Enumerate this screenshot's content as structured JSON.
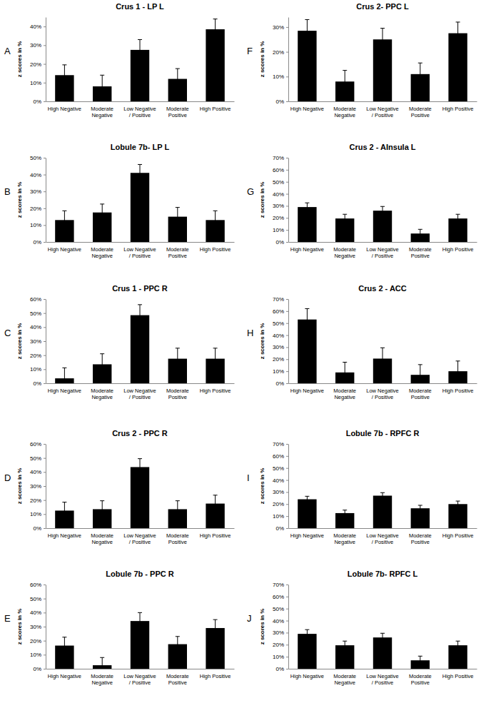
{
  "chart_data": [
    {
      "type": "bar",
      "label": "A",
      "title": "Crus 1 - LP L",
      "y_label": "z scores in %",
      "categories": [
        "High Negative",
        "Moderate Negative",
        "Low Negative / Positive",
        "Moderate Positive",
        "High Positive"
      ],
      "values": [
        14,
        8,
        27.5,
        12,
        38.5
      ],
      "errors": [
        5.5,
        6,
        5.5,
        5.5,
        5.5
      ],
      "color": "#000000",
      "ylim": [
        0,
        45
      ],
      "yticks": [
        {
          "value": 0,
          "label": "0%"
        },
        {
          "value": 10,
          "label": "10%"
        },
        {
          "value": 20,
          "label": "20%"
        },
        {
          "value": 30,
          "label": "30%"
        },
        {
          "value": 40,
          "label": "40%"
        }
      ]
    },
    {
      "type": "bar",
      "label": "B",
      "title": "Lobule 7b- LP L",
      "y_label": "z scores in %",
      "categories": [
        "High Negative",
        "Moderate Negative",
        "Low Negative / Positive",
        "Moderate Positive",
        "High Positive"
      ],
      "values": [
        13,
        17.5,
        41,
        15,
        13
      ],
      "errors": [
        5.5,
        5,
        5,
        5.5,
        5.5
      ],
      "color": "#000000",
      "ylim": [
        0,
        50
      ],
      "yticks": [
        {
          "value": 0,
          "label": "0%"
        },
        {
          "value": 10,
          "label": "10%"
        },
        {
          "value": 20,
          "label": "20%"
        },
        {
          "value": 30,
          "label": "30%"
        },
        {
          "value": 40,
          "label": "40%"
        },
        {
          "value": 50,
          "label": "50%"
        }
      ]
    },
    {
      "type": "bar",
      "label": "C",
      "title": "Crus 1 - PPC R",
      "y_label": "z scores in %",
      "categories": [
        "High Negative",
        "Moderate Negative",
        "Low Negative / Positive",
        "Moderate Positive",
        "High Positive"
      ],
      "values": [
        3.5,
        13.5,
        48.5,
        17.5,
        17.5
      ],
      "errors": [
        7.5,
        7.5,
        7.5,
        7.5,
        7.5
      ],
      "color": "#000000",
      "ylim": [
        0,
        60
      ],
      "yticks": [
        {
          "value": 0,
          "label": "0%"
        },
        {
          "value": 10,
          "label": "10%"
        },
        {
          "value": 20,
          "label": "20%"
        },
        {
          "value": 30,
          "label": "30%"
        },
        {
          "value": 40,
          "label": "40%"
        },
        {
          "value": 50,
          "label": "50%"
        },
        {
          "value": 60,
          "label": "60%"
        }
      ]
    },
    {
      "type": "bar",
      "label": "D",
      "title": "Crus 2 - PPC R",
      "y_label": "z scores in %",
      "categories": [
        "High Negative",
        "Moderate Negative",
        "Low Negative / Positive",
        "Moderate Positive",
        "High Positive"
      ],
      "values": [
        12.5,
        13.5,
        43.5,
        13.5,
        17.5
      ],
      "errors": [
        6,
        6,
        6,
        6,
        6
      ],
      "color": "#000000",
      "ylim": [
        0,
        60
      ],
      "yticks": [
        {
          "value": 0,
          "label": "0%"
        },
        {
          "value": 10,
          "label": "10%"
        },
        {
          "value": 20,
          "label": "20%"
        },
        {
          "value": 30,
          "label": "30%"
        },
        {
          "value": 40,
          "label": "40%"
        },
        {
          "value": 50,
          "label": "50%"
        },
        {
          "value": 60,
          "label": "60%"
        }
      ]
    },
    {
      "type": "bar",
      "label": "E",
      "title": "Lobule 7b - PPC R",
      "y_label": "z scores in %",
      "categories": [
        "High Negative",
        "Moderate Negative",
        "Low Negative / Positive",
        "Moderate Positive",
        "High Positive"
      ],
      "values": [
        16.5,
        2.5,
        34,
        17.5,
        29
      ],
      "errors": [
        6,
        5.5,
        6,
        5.5,
        6
      ],
      "color": "#000000",
      "ylim": [
        0,
        60
      ],
      "yticks": [
        {
          "value": 0,
          "label": "0%"
        },
        {
          "value": 10,
          "label": "10%"
        },
        {
          "value": 20,
          "label": "20%"
        },
        {
          "value": 30,
          "label": "30%"
        },
        {
          "value": 40,
          "label": "40%"
        },
        {
          "value": 50,
          "label": "50%"
        },
        {
          "value": 60,
          "label": "60%"
        }
      ]
    },
    {
      "type": "bar",
      "label": "F",
      "title": "Crus 2- PPC L",
      "y_label": "z scores in %",
      "categories": [
        "High Negative",
        "Moderate Negative",
        "Low Negative / Positive",
        "Moderate Positive",
        "High Positive"
      ],
      "values": [
        28.5,
        8,
        25,
        11,
        27.5
      ],
      "errors": [
        4.5,
        4.5,
        4.5,
        4.5,
        4.5
      ],
      "color": "#000000",
      "ylim": [
        0,
        34
      ],
      "yticks": [
        {
          "value": 0,
          "label": "0%"
        },
        {
          "value": 10,
          "label": "10%"
        },
        {
          "value": 20,
          "label": "20%"
        },
        {
          "value": 30,
          "label": "30%"
        }
      ]
    },
    {
      "type": "bar",
      "label": "G",
      "title": "Crus 2 - AInsula L",
      "y_label": "z scores in %",
      "categories": [
        "High Negative",
        "Moderate Negative",
        "Low Negative / Positive",
        "Moderate Positive",
        "High Positive"
      ],
      "values": [
        29,
        19.5,
        26,
        7,
        19.5
      ],
      "errors": [
        3.5,
        3.5,
        3.5,
        3.5,
        3.5
      ],
      "color": "#000000",
      "ylim": [
        0,
        70
      ],
      "yticks": [
        {
          "value": 0,
          "label": "0%"
        },
        {
          "value": 10,
          "label": "10%"
        },
        {
          "value": 20,
          "label": "20%"
        },
        {
          "value": 30,
          "label": "30%"
        },
        {
          "value": 40,
          "label": "40%"
        },
        {
          "value": 50,
          "label": "50%"
        },
        {
          "value": 60,
          "label": "60%"
        },
        {
          "value": 70,
          "label": "70%"
        }
      ]
    },
    {
      "type": "bar",
      "label": "H",
      "title": "Crus 2 - ACC",
      "y_label": "z scores in %",
      "categories": [
        "High Negative",
        "Moderate Negative",
        "Low Negative / Positive",
        "Moderate Positive",
        "High Positive"
      ],
      "values": [
        53,
        9,
        20.5,
        7,
        10
      ],
      "errors": [
        9,
        8.5,
        9,
        8.5,
        8.5
      ],
      "color": "#000000",
      "ylim": [
        0,
        70
      ],
      "yticks": [
        {
          "value": 0,
          "label": "0%"
        },
        {
          "value": 10,
          "label": "10%"
        },
        {
          "value": 20,
          "label": "20%"
        },
        {
          "value": 30,
          "label": "30%"
        },
        {
          "value": 40,
          "label": "40%"
        },
        {
          "value": 50,
          "label": "50%"
        },
        {
          "value": 60,
          "label": "60%"
        },
        {
          "value": 70,
          "label": "70%"
        }
      ]
    },
    {
      "type": "bar",
      "label": "I",
      "title": "Lobule 7b - RPFC R",
      "y_label": "z scores in %",
      "categories": [
        "High Negative",
        "Moderate Negative",
        "Low Negative / Positive",
        "Moderate Positive",
        "High Positive"
      ],
      "values": [
        24,
        12.5,
        27,
        16.5,
        20
      ],
      "errors": [
        2.5,
        2.5,
        2.5,
        2.5,
        2.5
      ],
      "color": "#000000",
      "ylim": [
        0,
        70
      ],
      "yticks": [
        {
          "value": 0,
          "label": "0%"
        },
        {
          "value": 10,
          "label": "10%"
        },
        {
          "value": 20,
          "label": "20%"
        },
        {
          "value": 30,
          "label": "30%"
        },
        {
          "value": 40,
          "label": "40%"
        },
        {
          "value": 50,
          "label": "50%"
        },
        {
          "value": 60,
          "label": "60%"
        },
        {
          "value": 70,
          "label": "70%"
        }
      ]
    },
    {
      "type": "bar",
      "label": "J",
      "title": "Lobule 7b- RPFC L",
      "y_label": "z scores in %",
      "categories": [
        "High Negative",
        "Moderate Negative",
        "Low Negative / Positive",
        "Moderate Positive",
        "High Positive"
      ],
      "values": [
        29,
        19.5,
        26,
        7,
        19.5
      ],
      "errors": [
        3.5,
        3.5,
        3.5,
        3.5,
        3.5
      ],
      "color": "#000000",
      "ylim": [
        0,
        70
      ],
      "yticks": [
        {
          "value": 0,
          "label": "0%"
        },
        {
          "value": 10,
          "label": "10%"
        },
        {
          "value": 20,
          "label": "20%"
        },
        {
          "value": 30,
          "label": "30%"
        },
        {
          "value": 40,
          "label": "40%"
        },
        {
          "value": 50,
          "label": "50%"
        },
        {
          "value": 60,
          "label": "60%"
        },
        {
          "value": 70,
          "label": "70%"
        }
      ]
    }
  ]
}
